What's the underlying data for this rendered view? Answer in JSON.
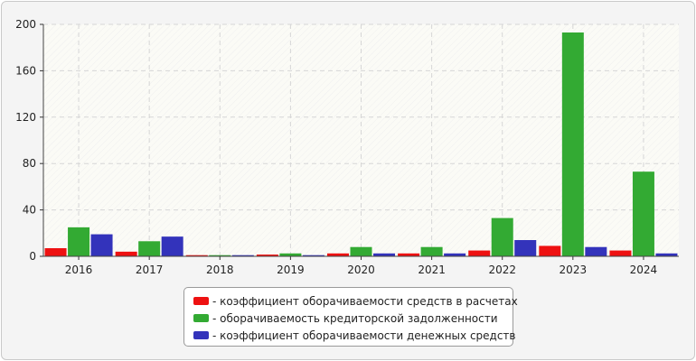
{
  "chart_data": {
    "type": "bar",
    "categories": [
      "2016",
      "2017",
      "2018",
      "2019",
      "2020",
      "2021",
      "2022",
      "2023",
      "2024"
    ],
    "series": [
      {
        "name": "- коэффициент оборачиваемости средств в расчетах",
        "color": "#ee1111",
        "values": [
          7,
          4,
          1,
          1.5,
          2.5,
          2.5,
          5,
          9,
          5
        ]
      },
      {
        "name": "- оборачиваемость кредиторской задолженности",
        "color": "#33aa33",
        "values": [
          25,
          13,
          1,
          2.5,
          8,
          8,
          33,
          193,
          73
        ]
      },
      {
        "name": "- коэффициент оборачиваемости денежных средств",
        "color": "#3333bb",
        "values": [
          19,
          17,
          1,
          1,
          2.5,
          2.5,
          14,
          8,
          2.5
        ]
      }
    ],
    "yticks": [
      "0",
      "40",
      "80",
      "120",
      "160",
      "200"
    ],
    "ylim": [
      0,
      200
    ],
    "grid": true,
    "legend_position": "bottom-center"
  }
}
